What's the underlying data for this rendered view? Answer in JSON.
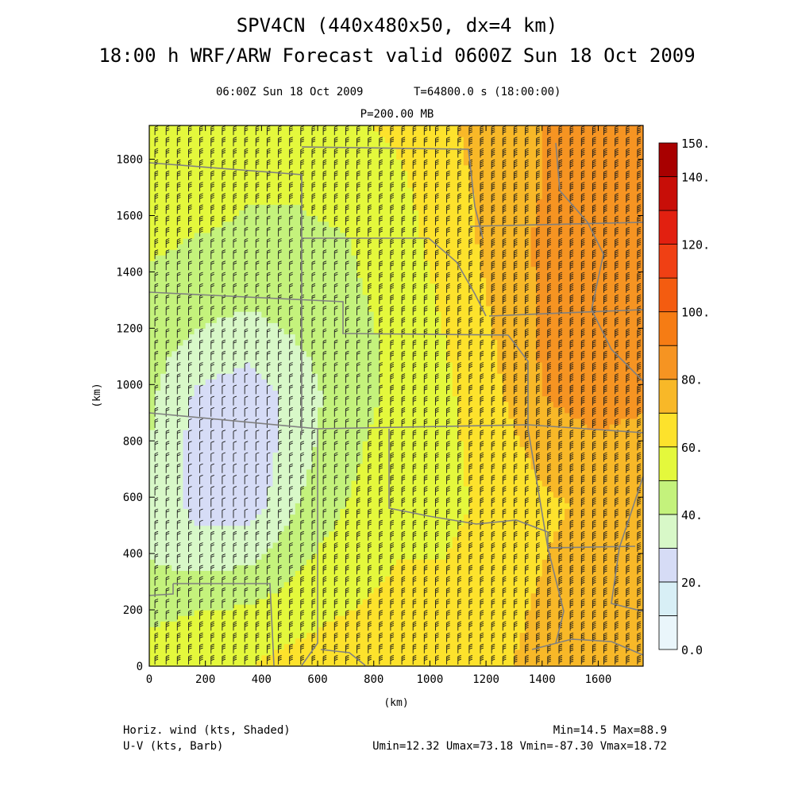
{
  "header": {
    "title_line1": "SPV4CN (440x480x50, dx=4 km)",
    "title_line2": "18:00 h WRF/ARW Forecast valid 0600Z Sun 18 Oct 2009",
    "valid_time": "06:00Z Sun 18 Oct 2009",
    "model_time": "T=64800.0 s (18:00:00)",
    "level": "P=200.00 MB"
  },
  "footer": {
    "left_line1": "Horiz. wind (kts, Shaded)",
    "left_line2": "U-V (kts, Barb)",
    "right_line1": "Min=14.5 Max=88.9",
    "right_line2": "Umin=12.32 Umax=73.18 Vmin=-87.30 Vmax=18.72"
  },
  "colors": {
    "frame": "#000000",
    "state_borders": "#808080",
    "barb": "#1a1a1a"
  },
  "chart_data": {
    "type": "heatmap",
    "title": "SPV4CN (440x480x50, dx=4 km)",
    "xlabel": "(km)",
    "ylabel": "(km)",
    "xlim": [
      0,
      1760
    ],
    "ylim": [
      0,
      1920
    ],
    "xticks": [
      0,
      200,
      400,
      600,
      800,
      1000,
      1200,
      1400,
      1600
    ],
    "yticks": [
      0,
      200,
      400,
      600,
      800,
      1000,
      1200,
      1400,
      1600,
      1800
    ],
    "grid": false,
    "variable": "Horiz. wind (kts, Shaded)",
    "overlay": "U-V (kts, Barb)",
    "min": 14.5,
    "max": 88.9,
    "colorbar": {
      "placement": "right",
      "levels": [
        0,
        10,
        20,
        30,
        40,
        50,
        60,
        70,
        80,
        90,
        100,
        110,
        120,
        130,
        140,
        150
      ],
      "tick_labels": [
        "0.0",
        "20.",
        "40.",
        "60.",
        "80.",
        "100.",
        "120.",
        "140.",
        "150."
      ],
      "tick_values": [
        0,
        20,
        40,
        60,
        80,
        100,
        120,
        140,
        150
      ],
      "colors": [
        "#eaf6fb",
        "#d8eff6",
        "#d6dcf6",
        "#d8f8c8",
        "#c4f27c",
        "#e4f83c",
        "#fde22c",
        "#f8b828",
        "#f69422",
        "#f67c14",
        "#f45c10",
        "#f04014",
        "#e22010",
        "#c80e08",
        "#a80000"
      ]
    },
    "field": {
      "grid_x": [
        0,
        176,
        352,
        528,
        704,
        880,
        1056,
        1232,
        1408,
        1584,
        1760
      ],
      "grid_y": [
        0,
        192,
        384,
        576,
        768,
        960,
        1152,
        1344,
        1536,
        1728,
        1920
      ],
      "rows_bottom_to_top": [
        [
          55,
          58,
          60,
          64,
          68,
          66,
          64,
          68,
          74,
          80,
          78
        ],
        [
          48,
          50,
          52,
          56,
          60,
          62,
          62,
          66,
          72,
          78,
          76
        ],
        [
          40,
          36,
          38,
          48,
          56,
          60,
          60,
          64,
          70,
          74,
          72
        ],
        [
          38,
          26,
          24,
          40,
          50,
          56,
          58,
          62,
          68,
          72,
          70
        ],
        [
          40,
          25,
          22,
          36,
          48,
          54,
          58,
          64,
          74,
          78,
          76
        ],
        [
          42,
          28,
          24,
          34,
          46,
          52,
          58,
          68,
          80,
          84,
          82
        ],
        [
          44,
          38,
          34,
          40,
          46,
          52,
          60,
          70,
          82,
          86,
          84
        ],
        [
          48,
          46,
          44,
          46,
          48,
          54,
          62,
          72,
          82,
          86,
          84
        ],
        [
          52,
          50,
          48,
          48,
          50,
          56,
          64,
          74,
          82,
          86,
          84
        ],
        [
          56,
          56,
          52,
          52,
          54,
          58,
          66,
          74,
          80,
          84,
          82
        ],
        [
          58,
          58,
          56,
          56,
          58,
          62,
          68,
          76,
          80,
          82,
          80
        ]
      ]
    }
  }
}
